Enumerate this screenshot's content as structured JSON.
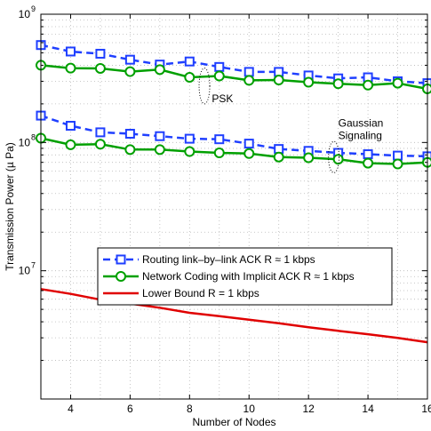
{
  "chart_data": {
    "type": "line",
    "xlabel": "Number of Nodes",
    "ylabel": "Transmission Power (µ Pa)",
    "xlim": [
      3,
      16
    ],
    "ylim": [
      1000000,
      1000000000
    ],
    "yscale": "log",
    "grid": true,
    "legend_placement": "center",
    "x_ticks": [
      4,
      6,
      8,
      10,
      12,
      14,
      16
    ],
    "y_ticks": [
      {
        "value": 10000000,
        "base": "10",
        "exp": "7"
      },
      {
        "value": 100000000,
        "base": "10",
        "exp": "8"
      },
      {
        "value": 1000000000,
        "base": "10",
        "exp": "9"
      }
    ],
    "annotations": [
      {
        "text": "PSK",
        "x": 8.75,
        "y": 220000000
      },
      {
        "text": "Gaussian",
        "x": 13.0,
        "y": 142000000
      },
      {
        "text": "Signaling",
        "x": 13.0,
        "y": 113000000
      }
    ],
    "ellipses": [
      {
        "x": 8.5,
        "y_top": 380000000,
        "y_bottom": 200000000
      },
      {
        "x": 12.85,
        "y_top": 102000000,
        "y_bottom": 58000000
      }
    ],
    "series": [
      {
        "name": "Routing link–by–link ACK R ≈ 1 kbps",
        "color": "#1f3fff",
        "style": "dashed",
        "marker": "square",
        "group": "PSK",
        "x": [
          3,
          4,
          5,
          6,
          7,
          8,
          9,
          10,
          11,
          12,
          13,
          14,
          15,
          16
        ],
        "y": [
          575000000,
          512000000,
          492000000,
          442000000,
          405000000,
          428000000,
          388000000,
          355000000,
          355000000,
          333000000,
          316000000,
          322000000,
          300000000,
          290000000
        ]
      },
      {
        "name": "Network Coding with Implicit ACK R ≈ 1 kbps",
        "color": "#00a000",
        "style": "solid",
        "marker": "circle",
        "group": "PSK",
        "x": [
          3,
          4,
          5,
          6,
          7,
          8,
          9,
          10,
          11,
          12,
          13,
          14,
          15,
          16
        ],
        "y": [
          400000000,
          380000000,
          378000000,
          357000000,
          370000000,
          322000000,
          330000000,
          305000000,
          307000000,
          295000000,
          287000000,
          280000000,
          290000000,
          262000000
        ]
      },
      {
        "name": "Routing link–by–link ACK R ≈ 1 kbps",
        "color": "#1f3fff",
        "style": "dashed",
        "marker": "square",
        "group": "Gaussian Signaling",
        "x": [
          3,
          4,
          5,
          6,
          7,
          8,
          9,
          10,
          11,
          12,
          13,
          14,
          15,
          16
        ],
        "y": [
          162000000,
          135000000,
          120000000,
          117000000,
          112000000,
          107000000,
          106000000,
          98000000,
          89000000,
          86000000,
          83000000,
          81000000,
          79000000,
          78000000
        ]
      },
      {
        "name": "Network Coding with Implicit ACK R ≈ 1 kbps",
        "color": "#00a000",
        "style": "solid",
        "marker": "circle",
        "group": "Gaussian Signaling",
        "x": [
          3,
          4,
          5,
          6,
          7,
          8,
          9,
          10,
          11,
          12,
          13,
          14,
          15,
          16
        ],
        "y": [
          108000000,
          96000000,
          97000000,
          88000000,
          88000000,
          85000000,
          83000000,
          82000000,
          77000000,
          76000000,
          74000000,
          69000000,
          68000000,
          70000000
        ]
      },
      {
        "name": "Lower Bound R = 1 kbps",
        "color": "#e00000",
        "style": "solid",
        "marker": "none",
        "group": "bound",
        "x": [
          3,
          4,
          5,
          6,
          7,
          8,
          9,
          10,
          11,
          12,
          13,
          14,
          15,
          16
        ],
        "y": [
          7200000,
          6600000,
          5950000,
          5550000,
          5150000,
          4700000,
          4420000,
          4150000,
          3900000,
          3630000,
          3400000,
          3200000,
          2990000,
          2770000
        ]
      }
    ],
    "legend": [
      {
        "label": "Routing link–by–link ACK R ≈ 1 kbps",
        "color": "#1f3fff",
        "style": "dashed",
        "marker": "square"
      },
      {
        "label": "Network Coding with Implicit ACK R ≈ 1 kbps",
        "color": "#00a000",
        "style": "solid",
        "marker": "circle"
      },
      {
        "label": "Lower Bound R = 1 kbps",
        "color": "#e00000",
        "style": "solid",
        "marker": "none"
      }
    ]
  }
}
